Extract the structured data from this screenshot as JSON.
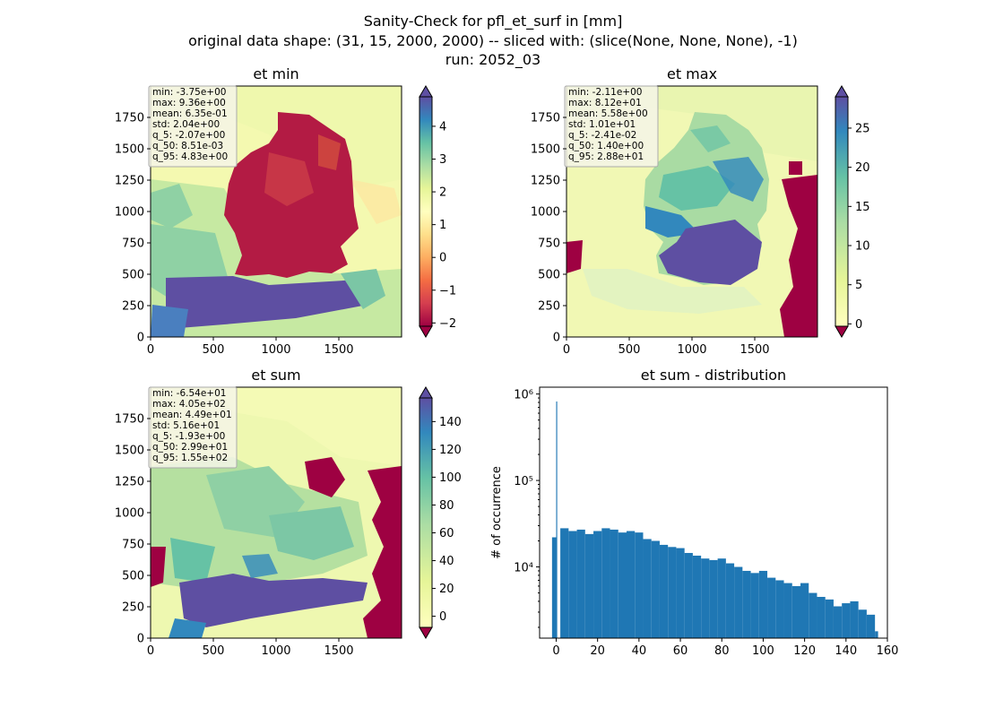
{
  "figure": {
    "title_line1": "Sanity-Check for pfl_et_surf in [mm]",
    "title_line2": "original data shape: (31, 15, 2000, 2000) -- sliced with: (slice(None, None, None), -1)",
    "title_line3": "run: 2052_03"
  },
  "colors": {
    "spectral": [
      "#9e0142",
      "#d53e4f",
      "#f46d43",
      "#fdae61",
      "#fee08b",
      "#ffffbf",
      "#e6f598",
      "#abdda4",
      "#66c2a5",
      "#3288bd",
      "#5e4fa2"
    ],
    "germany_dark": "#a51b43",
    "histogram_bar": "#1f77b4"
  },
  "map_axis": {
    "x_ticks": [
      "0",
      "500",
      "1000",
      "1500"
    ],
    "y_ticks": [
      "0",
      "250",
      "500",
      "750",
      "1000",
      "1250",
      "1500",
      "1750"
    ]
  },
  "panels": [
    {
      "title": "et min",
      "stats": [
        "min: -3.75e+00",
        "max: 9.36e+00",
        "mean: 6.35e-01",
        "std: 2.04e+00",
        "q_5: -2.07e+00",
        "q_50: 8.51e-03",
        "q_95: 4.83e+00"
      ],
      "colorbar": {
        "vmin": -2.1,
        "vmax": 4.9,
        "ticks": [
          "4",
          "3",
          "2",
          "1",
          "0",
          "−1",
          "−2"
        ],
        "tick_values": [
          4,
          3,
          2,
          1,
          0,
          -1,
          -2
        ]
      }
    },
    {
      "title": "et max",
      "stats": [
        "min: -2.11e+00",
        "max: 8.12e+01",
        "mean: 5.58e+00",
        "std: 1.01e+01",
        "q_5: -2.41e-02",
        "q_50: 1.40e+00",
        "q_95: 2.88e+01"
      ],
      "colorbar": {
        "vmin": -0.3,
        "vmax": 29,
        "ticks": [
          "25",
          "20",
          "15",
          "10",
          "5",
          "0"
        ],
        "tick_values": [
          25,
          20,
          15,
          10,
          5,
          0
        ]
      }
    },
    {
      "title": "et sum",
      "stats": [
        "min: -6.54e+01",
        "max: 4.05e+02",
        "mean: 4.49e+01",
        "std: 5.16e+01",
        "q_5: -1.93e+00",
        "q_50: 2.99e+01",
        "q_95: 1.55e+02"
      ],
      "colorbar": {
        "vmin": -8,
        "vmax": 157,
        "ticks": [
          "140",
          "120",
          "100",
          "80",
          "60",
          "40",
          "20",
          "0"
        ],
        "tick_values": [
          140,
          120,
          100,
          80,
          60,
          40,
          20,
          0
        ]
      }
    }
  ],
  "chart_data": {
    "type": "bar",
    "title": "et sum - distribution",
    "xlabel": "",
    "ylabel": "# of occurrence",
    "yscale": "log",
    "xlim": [
      -8,
      160
    ],
    "ylim": [
      1500,
      1200000
    ],
    "x_ticks": [
      0,
      20,
      40,
      60,
      80,
      100,
      120,
      140,
      160
    ],
    "x_tick_labels": [
      "0",
      "20",
      "40",
      "60",
      "80",
      "100",
      "120",
      "140",
      "160"
    ],
    "y_ticks": [
      10000,
      100000,
      1000000
    ],
    "y_tick_labels": [
      "10⁴",
      "10⁵",
      "10⁶"
    ],
    "bins": [
      [
        -2,
        22000
      ],
      [
        0,
        820000
      ],
      [
        2,
        28000
      ],
      [
        6,
        26000
      ],
      [
        10,
        27000
      ],
      [
        14,
        24000
      ],
      [
        18,
        26000
      ],
      [
        22,
        28000
      ],
      [
        26,
        27000
      ],
      [
        30,
        25000
      ],
      [
        34,
        26000
      ],
      [
        38,
        25000
      ],
      [
        42,
        21000
      ],
      [
        46,
        20000
      ],
      [
        50,
        18000
      ],
      [
        54,
        17000
      ],
      [
        58,
        16500
      ],
      [
        62,
        14500
      ],
      [
        66,
        13500
      ],
      [
        70,
        12500
      ],
      [
        74,
        12000
      ],
      [
        78,
        12500
      ],
      [
        82,
        11000
      ],
      [
        86,
        10000
      ],
      [
        90,
        9000
      ],
      [
        94,
        8500
      ],
      [
        98,
        9000
      ],
      [
        102,
        7500
      ],
      [
        106,
        7000
      ],
      [
        110,
        6500
      ],
      [
        114,
        6000
      ],
      [
        118,
        6500
      ],
      [
        122,
        5000
      ],
      [
        126,
        4500
      ],
      [
        130,
        4200
      ],
      [
        134,
        3500
      ],
      [
        138,
        3800
      ],
      [
        142,
        4000
      ],
      [
        146,
        3200
      ],
      [
        150,
        2800
      ],
      [
        154,
        1800
      ]
    ]
  }
}
